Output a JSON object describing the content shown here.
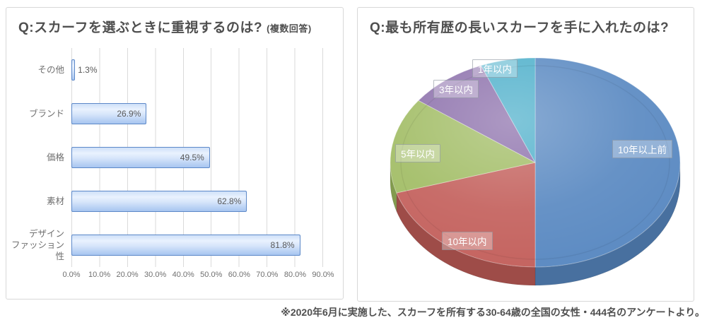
{
  "footer_note": "※2020年6月に実施した、スカーフを所有する30-64歳の全国の女性・444名のアンケートより。",
  "bar_chart": {
    "title": "Q:スカーフを選ぶときに重視するのは?",
    "title_note": "(複数回答)"
  },
  "pie_chart": {
    "title": "Q:最も所有歴の長いスカーフを手に入れたのは?"
  },
  "chart_data": [
    {
      "type": "bar",
      "orientation": "horizontal",
      "title": "Q:スカーフを選ぶときに重視するのは?(複数回答)",
      "categories": [
        "その他",
        "ブランド",
        "価格",
        "素材",
        "デザイン\nファッション性"
      ],
      "values": [
        1.3,
        26.9,
        49.5,
        62.8,
        81.8
      ],
      "value_labels": [
        "1.3%",
        "26.9%",
        "49.5%",
        "62.8%",
        "81.8%"
      ],
      "xlabel": "",
      "ylabel": "",
      "xlim": [
        0,
        90
      ],
      "tick_labels": [
        "0.0%",
        "10.0%",
        "20.0%",
        "30.0%",
        "40.0%",
        "50.0%",
        "60.0%",
        "70.0%",
        "80.0%",
        "90.0%"
      ],
      "grid": true,
      "bar_fill": "#bcd5f5",
      "bar_border": "#5c88c8"
    },
    {
      "type": "pie",
      "title": "Q:最も所有歴の長いスカーフを手に入れたのは?",
      "style": "3d",
      "start_angle_clock": 0,
      "direction": "clockwise",
      "slices": [
        {
          "label": "10年以上前",
          "percent": 50.0,
          "color": "#5b8ac2",
          "dark": "#48709f"
        },
        {
          "label": "10年以内",
          "percent": 20.3,
          "color": "#c4625e",
          "dark": "#9e4c48"
        },
        {
          "label": "5年以内",
          "percent": 14.8,
          "color": "#a2bd66",
          "dark": "#829b4e"
        },
        {
          "label": "3年以内",
          "percent": 8.8,
          "color": "#8d71ac",
          "dark": "#6f588c"
        },
        {
          "label": "1年以内",
          "percent": 6.1,
          "color": "#4fb0cb",
          "dark": "#3c8ea6"
        }
      ],
      "legend": "labels-on-slices"
    }
  ]
}
